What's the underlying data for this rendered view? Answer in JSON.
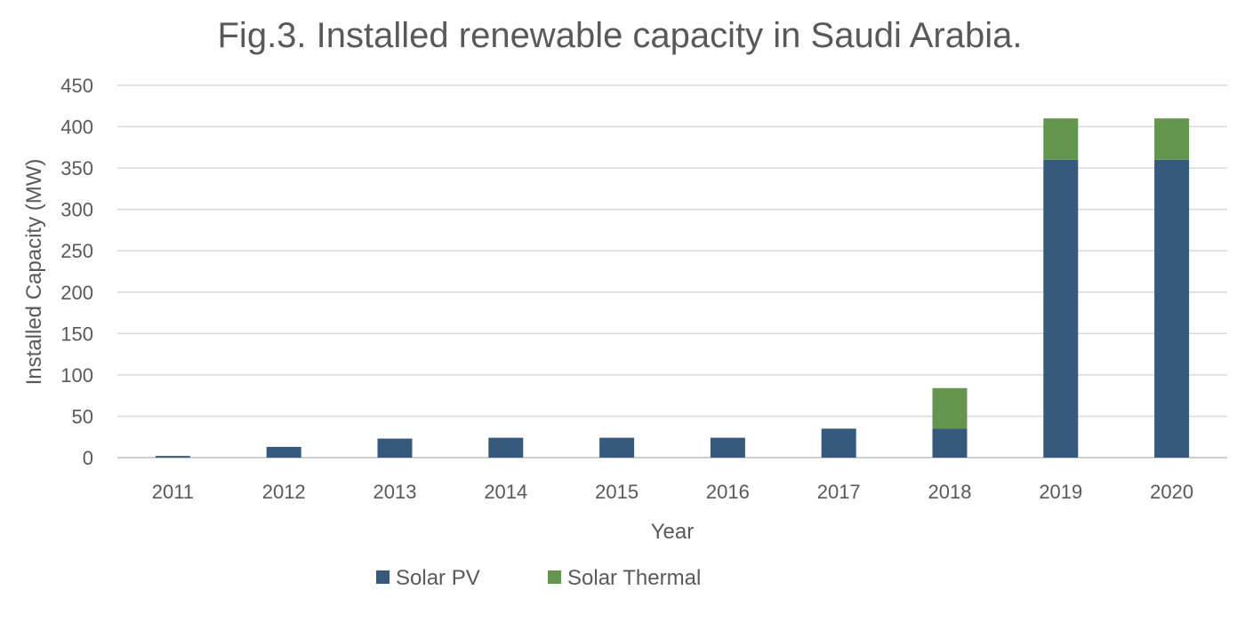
{
  "chart_data": {
    "type": "bar",
    "stacked": true,
    "title": "Fig.3. Installed renewable capacity in Saudi Arabia.",
    "xlabel": "Year",
    "ylabel": "Installed Capacity (MW)",
    "categories": [
      "2011",
      "2012",
      "2013",
      "2014",
      "2015",
      "2016",
      "2017",
      "2018",
      "2019",
      "2020"
    ],
    "series": [
      {
        "name": "Solar PV",
        "color": "#355A7D",
        "values": [
          2,
          13,
          23,
          24,
          24,
          24,
          35,
          35,
          360,
          360
        ]
      },
      {
        "name": "Solar Thermal",
        "color": "#63954F",
        "values": [
          0,
          0,
          0,
          0,
          0,
          0,
          0,
          49,
          50,
          50
        ]
      }
    ],
    "ylim": [
      0,
      450
    ],
    "yticks": [
      0,
      50,
      100,
      150,
      200,
      250,
      300,
      350,
      400,
      450
    ],
    "grid": true,
    "legend_position": "bottom"
  }
}
